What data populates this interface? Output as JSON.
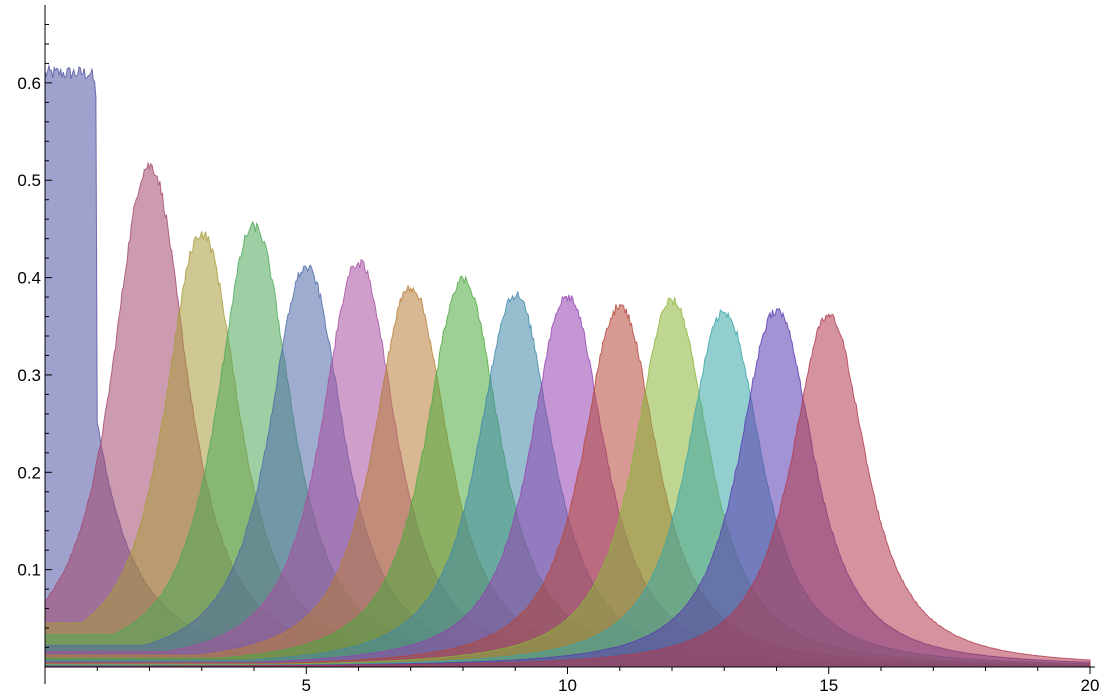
{
  "chart_data": {
    "type": "area",
    "title": "",
    "xlabel": "",
    "ylabel": "",
    "xlim": [
      0,
      20
    ],
    "ylim": [
      0,
      0.68
    ],
    "x_ticks": [
      5,
      10,
      15,
      20
    ],
    "x_tick_labels": [
      "5",
      "10",
      "15",
      "20"
    ],
    "y_ticks": [
      0.1,
      0.2,
      0.3,
      0.4,
      0.5,
      0.6
    ],
    "y_tick_labels": [
      "0.1",
      "0.2",
      "0.3",
      "0.4",
      "0.5",
      "0.6"
    ],
    "grid": false,
    "legend": "none",
    "opacity": 0.55,
    "series": [
      {
        "center": 0,
        "peak": 0.61,
        "baseline": 0.155,
        "baseline_end": 0.8,
        "color": "#5254a3"
      },
      {
        "center": 2,
        "peak": 0.515,
        "baseline": 0.065,
        "baseline_end": 1.0,
        "color": "#a3486f"
      },
      {
        "center": 3,
        "peak": 0.445,
        "baseline": 0.045,
        "baseline_end": 1.5,
        "color": "#a89b3a"
      },
      {
        "center": 4,
        "peak": 0.452,
        "baseline": 0.033,
        "baseline_end": 2.0,
        "color": "#4fa85a"
      },
      {
        "center": 5,
        "peak": 0.41,
        "baseline": 0.022,
        "baseline_end": 2.5,
        "color": "#4f6aa8"
      },
      {
        "center": 6,
        "peak": 0.415,
        "baseline": 0.016,
        "baseline_end": 3.0,
        "color": "#a84fa0"
      },
      {
        "center": 7,
        "peak": 0.39,
        "baseline": 0.012,
        "baseline_end": 3.5,
        "color": "#b87d3a"
      },
      {
        "center": 8,
        "peak": 0.398,
        "baseline": 0.009,
        "baseline_end": 4.0,
        "color": "#4daa3e"
      },
      {
        "center": 9,
        "peak": 0.382,
        "baseline": 0.007,
        "baseline_end": 4.5,
        "color": "#3f88a8"
      },
      {
        "center": 10,
        "peak": 0.38,
        "baseline": 0.005,
        "baseline_end": 5.0,
        "color": "#9342b0"
      },
      {
        "center": 11,
        "peak": 0.37,
        "baseline": 0.004,
        "baseline_end": 5.5,
        "color": "#b5473b"
      },
      {
        "center": 12,
        "peak": 0.376,
        "baseline": 0.003,
        "baseline_end": 6.0,
        "color": "#8ab53a"
      },
      {
        "center": 13,
        "peak": 0.364,
        "baseline": 0.002,
        "baseline_end": 6.5,
        "color": "#3aa6a8"
      },
      {
        "center": 14,
        "peak": 0.366,
        "baseline": 0.001,
        "baseline_end": 7.0,
        "color": "#5a3ab0"
      },
      {
        "center": 15,
        "peak": 0.36,
        "baseline": 0.0005,
        "baseline_end": 7.5,
        "color": "#b03a4f"
      }
    ]
  }
}
